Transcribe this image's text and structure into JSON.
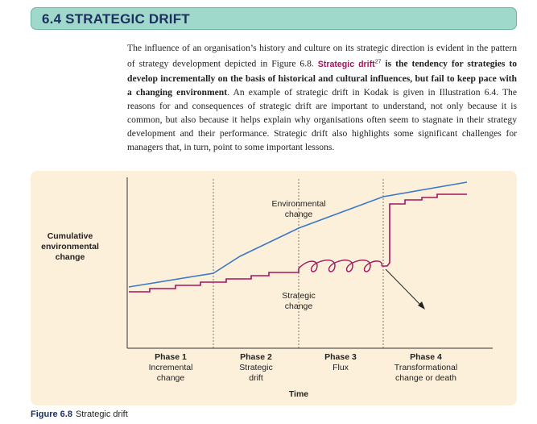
{
  "section": {
    "title": "6.4 STRATEGIC DRIFT"
  },
  "body": {
    "part1": "The influence of an organisation’s history and culture on its strategic direction is evident in the pattern of strategy development depicted in Figure 6.8. ",
    "term": "Strategic drift",
    "footnote": "27",
    "bold_part": " is the tendency for strategies to develop incrementally on the basis of historical and cultural influences, but fail to keep pace with a changing environment",
    "part2": ". An example of strategic drift in Kodak is given in Illustration 6.4. The reasons for and consequences of strategic drift are important to understand, not only because it is common, but also because it helps explain why organisations often seem to stagnate in their strategy development and their performance. Strategic drift also highlights some significant challenges for managers that, in turn, point to some important lessons."
  },
  "figure": {
    "y_axis_label": [
      "Cumulative",
      "environmental",
      "change"
    ],
    "x_axis_label": "Time",
    "env_label": [
      "Environmental",
      "change"
    ],
    "strat_label": [
      "Strategic",
      "change"
    ],
    "phases": [
      {
        "name": "Phase 1",
        "desc": [
          "Incremental",
          "change"
        ]
      },
      {
        "name": "Phase 2",
        "desc": [
          "Strategic",
          "drift"
        ]
      },
      {
        "name": "Phase 3",
        "desc": [
          "Flux"
        ]
      },
      {
        "name": "Phase 4",
        "desc": [
          "Transformational",
          "change or death"
        ]
      }
    ],
    "colors": {
      "environment_line": "#3a78c8",
      "strategy_line": "#a3145e",
      "panel": "#fdf0db",
      "header": "#9fd9cc"
    },
    "caption_number": "Figure 6.8",
    "caption_text": "Strategic drift"
  }
}
